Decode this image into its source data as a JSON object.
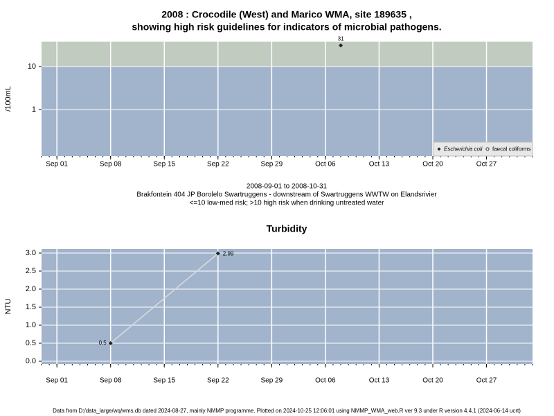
{
  "chart_data": [
    {
      "type": "scatter",
      "title": [
        "2008 : Crocodile (West) and Marico WMA, site 189635 ,",
        "showing high risk guidelines for indicators of microbial pathogens."
      ],
      "ylabel": "/100mL",
      "log_y": true,
      "ylim": [
        0.083,
        38
      ],
      "yticks": [
        1,
        10
      ],
      "xlim": [
        "Aug 30",
        "Nov 02"
      ],
      "xticks": [
        "Sep 01",
        "Sep 08",
        "Sep 15",
        "Sep 22",
        "Sep 29",
        "Oct 06",
        "Oct 13",
        "Oct 20",
        "Oct 27"
      ],
      "grid": true,
      "background": "#a2b4cc",
      "guideline": 10,
      "high_risk_color": "#c1cbc0",
      "legend": "lower right",
      "series": [
        {
          "name": "Escherichia coli",
          "marker": "diamond",
          "color": "#222222",
          "x": [
            "Oct 08"
          ],
          "values": [
            31
          ],
          "value_labels": [
            "31"
          ]
        },
        {
          "name": "faecal coliforms",
          "marker": "circle",
          "color": "#222222",
          "x": [],
          "values": []
        }
      ],
      "notes": [
        "2008-09-01 to 2008-10-31",
        "Brakfontein 404 JP Borolelo Swartruggens - downstream of Swartruggens WWTW on Elandsrivier",
        "<=10 low-med risk; >10 high risk when drinking untreated water"
      ]
    },
    {
      "type": "line",
      "title": [
        "Turbidity"
      ],
      "ylabel": "NTU",
      "log_y": false,
      "ylim": [
        -0.077,
        3.115
      ],
      "yticks": [
        {
          "value": 0,
          "label": "0.0"
        },
        0.5,
        {
          "value": 1,
          "label": "1.0"
        },
        1.5,
        {
          "value": 2,
          "label": "2.0"
        },
        2.5,
        {
          "value": 3,
          "label": "3.0"
        }
      ],
      "xlim": [
        "Aug 30",
        "Nov 02"
      ],
      "xticks": [
        "Sep 01",
        "Sep 08",
        "Sep 15",
        "Sep 22",
        "Sep 29",
        "Oct 06",
        "Oct 13",
        "Oct 20",
        "Oct 27"
      ],
      "grid": true,
      "background": "#a2b4cc",
      "series": [
        {
          "marker": "diamond",
          "color": "#222222",
          "line_color": "#dcdcdc",
          "x": [
            "Sep 08",
            "Sep 22"
          ],
          "values": [
            0.5,
            2.99
          ],
          "value_labels": [
            "0.5",
            "2.99"
          ]
        }
      ]
    }
  ],
  "footer": "Data from D:/data_large/wq/wms.db dated 2024-08-27, mainly NMMP programme. Plotted on 2024-10-25 12:06:01 using NMMP_WMA_web.R ver 9.3 under R version 4.4.1 (2024-06-14 ucrt)"
}
